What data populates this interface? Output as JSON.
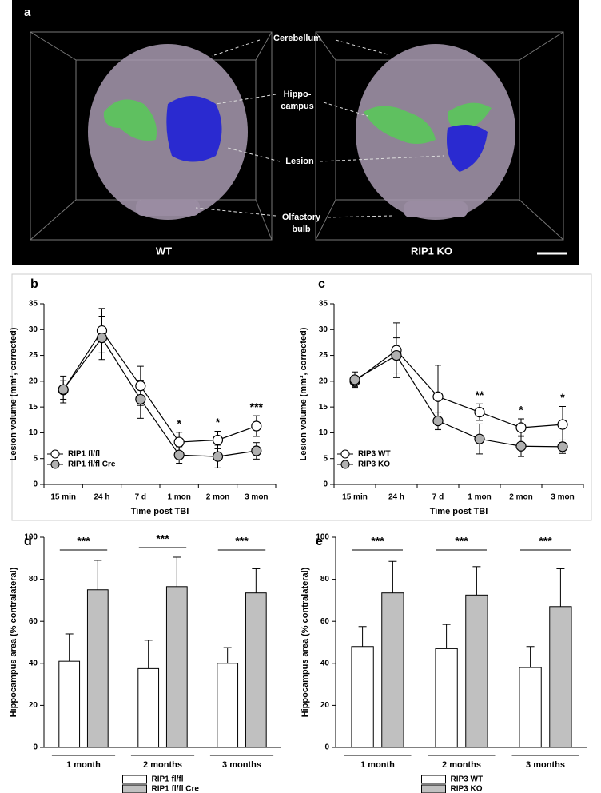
{
  "image_panel": {
    "label": "a",
    "labels": [
      "Cerebellum",
      "Hippo-",
      "campus",
      "Lesion",
      "Olfactory",
      "bulb"
    ],
    "genotypes": [
      "WT",
      "RIP1 KO"
    ]
  },
  "chart_data": [
    {
      "type": "line",
      "label": "b",
      "x_label": "Time post TBI",
      "y_label": "Lesion volume (mm³, corrected)",
      "categories": [
        "15 min",
        "24 h",
        "7 d",
        "1 mon",
        "2 mon",
        "3 mon"
      ],
      "series": [
        {
          "name": "RIP1 fl/fl",
          "color": "#ffffff",
          "values": [
            18.3,
            29.8,
            19.1,
            8.2,
            8.6,
            11.3
          ],
          "errors": [
            1.8,
            4.3,
            3.8,
            1.9,
            1.7,
            2.0
          ]
        },
        {
          "name": "RIP1 fl/fl Cre",
          "color": "#b0b0b0",
          "values": [
            18.4,
            28.4,
            16.5,
            5.7,
            5.4,
            6.5
          ],
          "errors": [
            2.6,
            4.2,
            3.7,
            1.6,
            2.2,
            1.6
          ]
        }
      ],
      "significance": [
        null,
        null,
        null,
        "*",
        "*",
        "***"
      ],
      "ylim": [
        0,
        35
      ],
      "yticks": [
        0,
        5,
        10,
        15,
        20,
        25,
        30,
        35
      ],
      "legend": "lower left"
    },
    {
      "type": "line",
      "label": "c",
      "x_label": "Time post TBI",
      "y_label": "Lesion volume (mm³, corrected)",
      "categories": [
        "15 min",
        "24 h",
        "7 d",
        "1 mon",
        "2 mon",
        "3 mon"
      ],
      "series": [
        {
          "name": "RIP3 WT",
          "color": "#ffffff",
          "values": [
            20.0,
            26.0,
            17.0,
            14.0,
            11.0,
            11.6
          ],
          "errors": [
            1.0,
            5.3,
            6.1,
            1.6,
            1.7,
            3.5
          ]
        },
        {
          "name": "RIP3 KO",
          "color": "#b0b0b0",
          "values": [
            20.3,
            25.0,
            12.3,
            8.8,
            7.4,
            7.3
          ],
          "errors": [
            1.5,
            3.4,
            1.7,
            2.9,
            2.0,
            1.3
          ]
        }
      ],
      "significance": [
        null,
        null,
        null,
        "**",
        "*",
        "*"
      ],
      "ylim": [
        0,
        35
      ],
      "yticks": [
        0,
        5,
        10,
        15,
        20,
        25,
        30,
        35
      ],
      "legend": "lower left"
    },
    {
      "type": "bar",
      "label": "d",
      "y_label": "Hippocampus area (% contralateral)",
      "categories": [
        "1 month",
        "2 months",
        "3 months"
      ],
      "series": [
        {
          "name": "RIP1 fl/fl",
          "color": "#ffffff",
          "values": [
            41,
            37.5,
            40
          ],
          "errors": [
            13,
            13.5,
            7.5
          ]
        },
        {
          "name": "RIP1 fl/fl Cre",
          "color": "#c0c0c0",
          "values": [
            75,
            76.5,
            73.5
          ],
          "errors": [
            14,
            14,
            11.5
          ]
        }
      ],
      "significance": [
        "***",
        "***",
        "***"
      ],
      "ylim": [
        0,
        100
      ],
      "yticks": [
        0,
        20,
        40,
        60,
        80,
        100
      ],
      "legend": "below"
    },
    {
      "type": "bar",
      "label": "e",
      "y_label": "Hippocampus area (% contralateral)",
      "categories": [
        "1 month",
        "2 months",
        "3 months"
      ],
      "series": [
        {
          "name": "RIP3 WT",
          "color": "#ffffff",
          "values": [
            48,
            47,
            38
          ],
          "errors": [
            9.5,
            11.5,
            10
          ]
        },
        {
          "name": "RIP3 KO",
          "color": "#c0c0c0",
          "values": [
            73.5,
            72.5,
            67
          ],
          "errors": [
            15,
            13.5,
            18
          ]
        }
      ],
      "significance": [
        "***",
        "***",
        "***"
      ],
      "ylim": [
        0,
        100
      ],
      "yticks": [
        0,
        20,
        40,
        60,
        80,
        100
      ],
      "legend": "below"
    }
  ]
}
